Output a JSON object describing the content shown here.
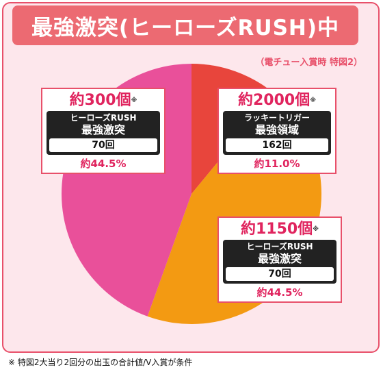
{
  "title": "最強激突(ヒーローズRUSH)中",
  "subtitle": "（電チュー入賞時 特図2）",
  "footnote": "※ 特図2大当り2回分の出玉の合計値/V入賞が条件",
  "colors": {
    "frame": "#e8506a",
    "background": "#fde7ec",
    "title_bg": "#ec6a72",
    "slice_red": "#e8453c",
    "slice_orange": "#f39a12",
    "slice_pink": "#e9509a",
    "text_accent": "#e0245e"
  },
  "chart_data": {
    "type": "pie",
    "title": "最強激突(ヒーローズRUSH)中",
    "slices": [
      {
        "payout": "約2000個",
        "mode": "ラッキートリガー",
        "mode_type": "最強領域",
        "spins": "162回",
        "percent_label": "約11.0%",
        "value": 11.0,
        "color": "#e8453c"
      },
      {
        "payout": "約1150個",
        "mode": "ヒーローズRUSH",
        "mode_type": "最強激突",
        "spins": "70回",
        "percent_label": "約44.5%",
        "value": 44.5,
        "color": "#f39a12"
      },
      {
        "payout": "約300個",
        "mode": "ヒーローズRUSH",
        "mode_type": "最強激突",
        "spins": "70回",
        "percent_label": "約44.5%",
        "value": 44.5,
        "color": "#e9509a"
      }
    ],
    "mark": "※"
  }
}
